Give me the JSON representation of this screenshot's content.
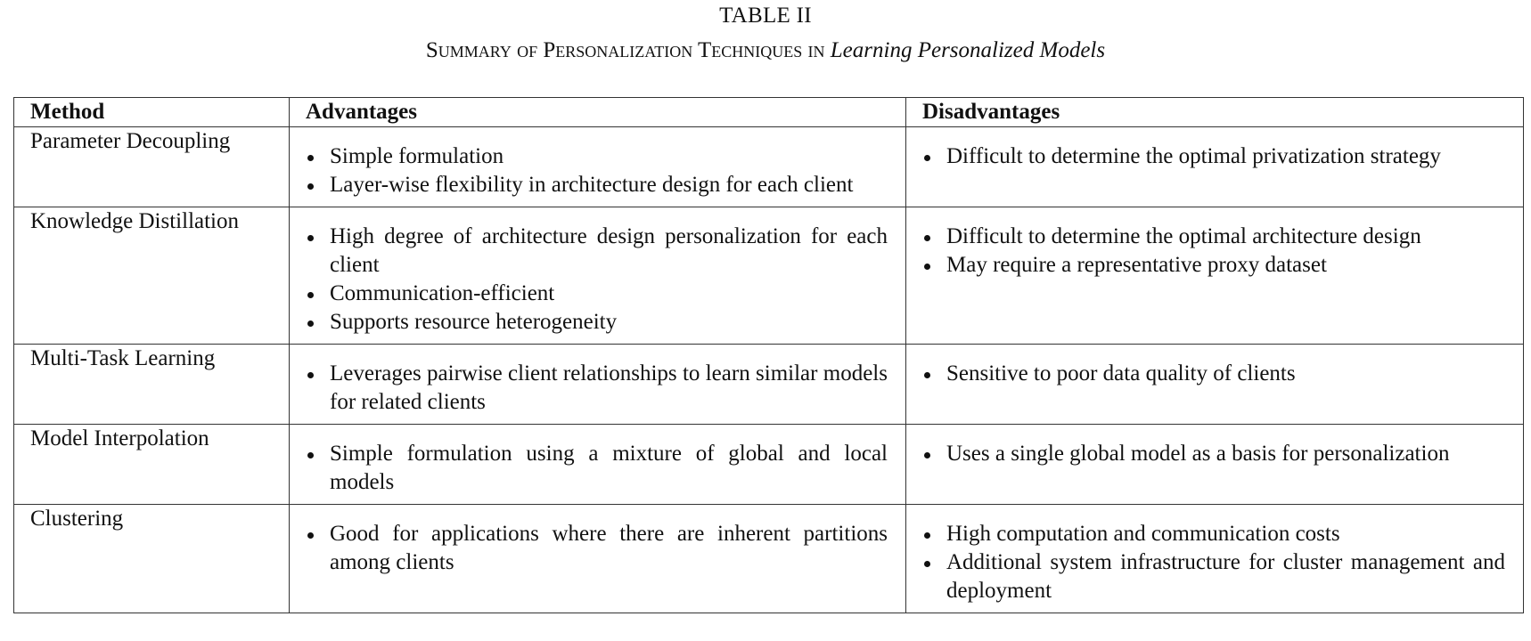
{
  "caption": {
    "label": "TABLE II",
    "title_smallcaps": "Summary of Personalization Techniques in",
    "title_italic": "Learning Personalized Models"
  },
  "table": {
    "headers": {
      "method": "Method",
      "advantages": "Advantages",
      "disadvantages": "Disadvantages"
    },
    "rows": [
      {
        "method": "Parameter Decoupling",
        "advantages": [
          "Simple formulation",
          "Layer-wise flexibility in architecture design for each client"
        ],
        "disadvantages": [
          "Difficult to determine the optimal privatization strategy"
        ]
      },
      {
        "method": "Knowledge Distillation",
        "advantages": [
          "High degree of architecture design personalization for each client",
          "Communication-efficient",
          "Supports resource heterogeneity"
        ],
        "disadvantages": [
          "Difficult to determine the optimal architecture design",
          "May require a representative proxy dataset"
        ]
      },
      {
        "method": "Multi-Task Learning",
        "advantages": [
          "Leverages pairwise client relationships to learn similar models for related clients"
        ],
        "disadvantages": [
          "Sensitive to poor data quality of clients"
        ]
      },
      {
        "method": "Model Interpolation",
        "advantages": [
          "Simple formulation using a mixture of global and local models"
        ],
        "disadvantages": [
          "Uses a single global model as a basis for personalization"
        ]
      },
      {
        "method": "Clustering",
        "advantages": [
          "Good for applications where there are inherent partitions among clients"
        ],
        "disadvantages": [
          "High computation and communication costs",
          "Additional system infrastructure for cluster management and deployment"
        ]
      }
    ]
  }
}
